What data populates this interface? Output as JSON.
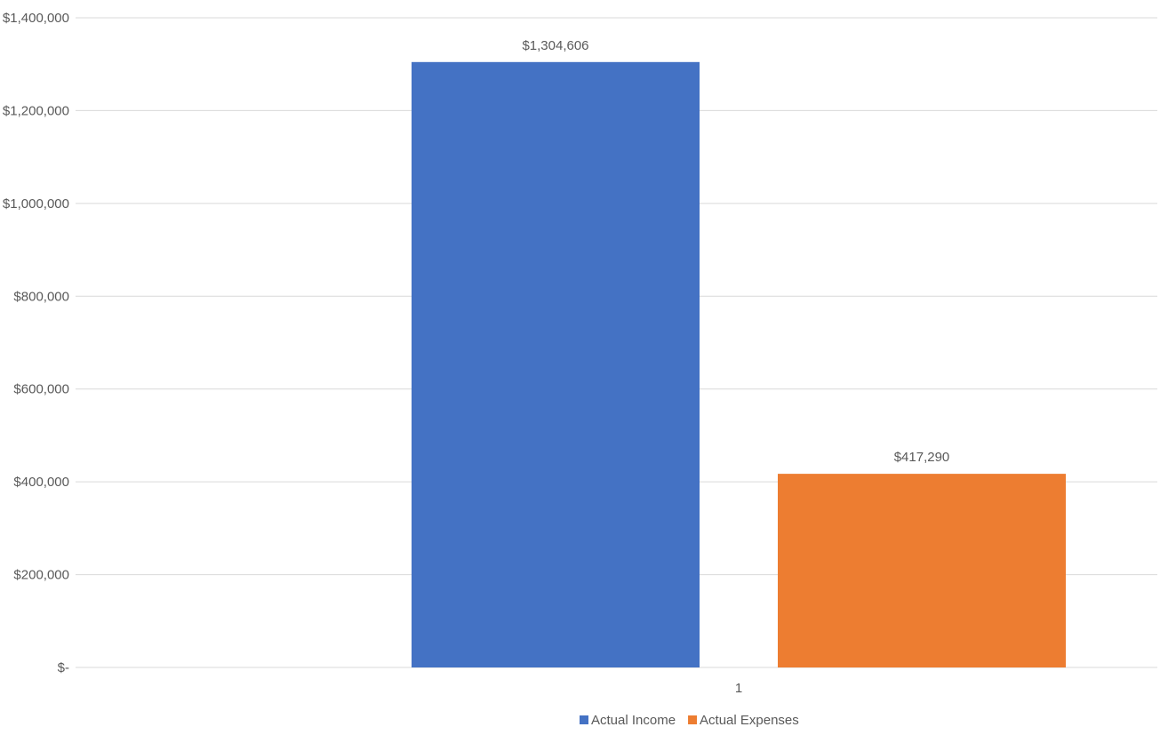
{
  "chart_data": {
    "type": "bar",
    "title": "",
    "xlabel": "",
    "ylabel": "",
    "categories": [
      "1"
    ],
    "series": [
      {
        "name": "Actual Income",
        "values": [
          1304606
        ],
        "label": "$1,304,606",
        "color": "#4472C4"
      },
      {
        "name": "Actual Expenses",
        "values": [
          417290
        ],
        "label": "$417,290",
        "color": "#ED7D31"
      }
    ],
    "ylim": [
      0,
      1400000
    ],
    "y_ticks": [
      {
        "value": 0,
        "label": "$-"
      },
      {
        "value": 200000,
        "label": "$200,000"
      },
      {
        "value": 400000,
        "label": "$400,000"
      },
      {
        "value": 600000,
        "label": "$600,000"
      },
      {
        "value": 800000,
        "label": "$800,000"
      },
      {
        "value": 1000000,
        "label": "$1,000,000"
      },
      {
        "value": 1200000,
        "label": "$1,200,000"
      },
      {
        "value": 1400000,
        "label": "$1,400,000"
      }
    ],
    "grid": true,
    "legend_position": "bottom"
  }
}
